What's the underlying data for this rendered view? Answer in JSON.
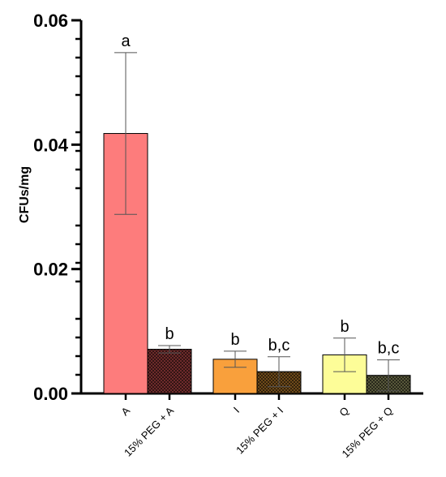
{
  "chart_data": {
    "type": "bar",
    "title": "",
    "xlabel": "",
    "ylabel": "CFUs/mg",
    "ylim": [
      0,
      0.06
    ],
    "yticks": [
      "0.00",
      "0.02",
      "0.04",
      "0.06"
    ],
    "grid": false,
    "legend": "none",
    "categories": [
      "A",
      "15% PEG + A",
      "I",
      "15% PEG + I",
      "Q",
      "15% PEG + Q"
    ],
    "values": [
      0.0418,
      0.0071,
      0.0055,
      0.0035,
      0.0062,
      0.0029
    ],
    "error": [
      0.013,
      0.0006,
      0.0013,
      0.0024,
      0.0027,
      0.0025
    ],
    "significance": [
      "a",
      "b",
      "b",
      "b,c",
      "b",
      "b,c"
    ],
    "fill_colors": [
      "#fd7c7c",
      "#6e2b2b",
      "#f9a03c",
      "#6e4a1a",
      "#fdfd98",
      "#58583a"
    ],
    "patterned": [
      false,
      true,
      false,
      true,
      false,
      true
    ]
  }
}
